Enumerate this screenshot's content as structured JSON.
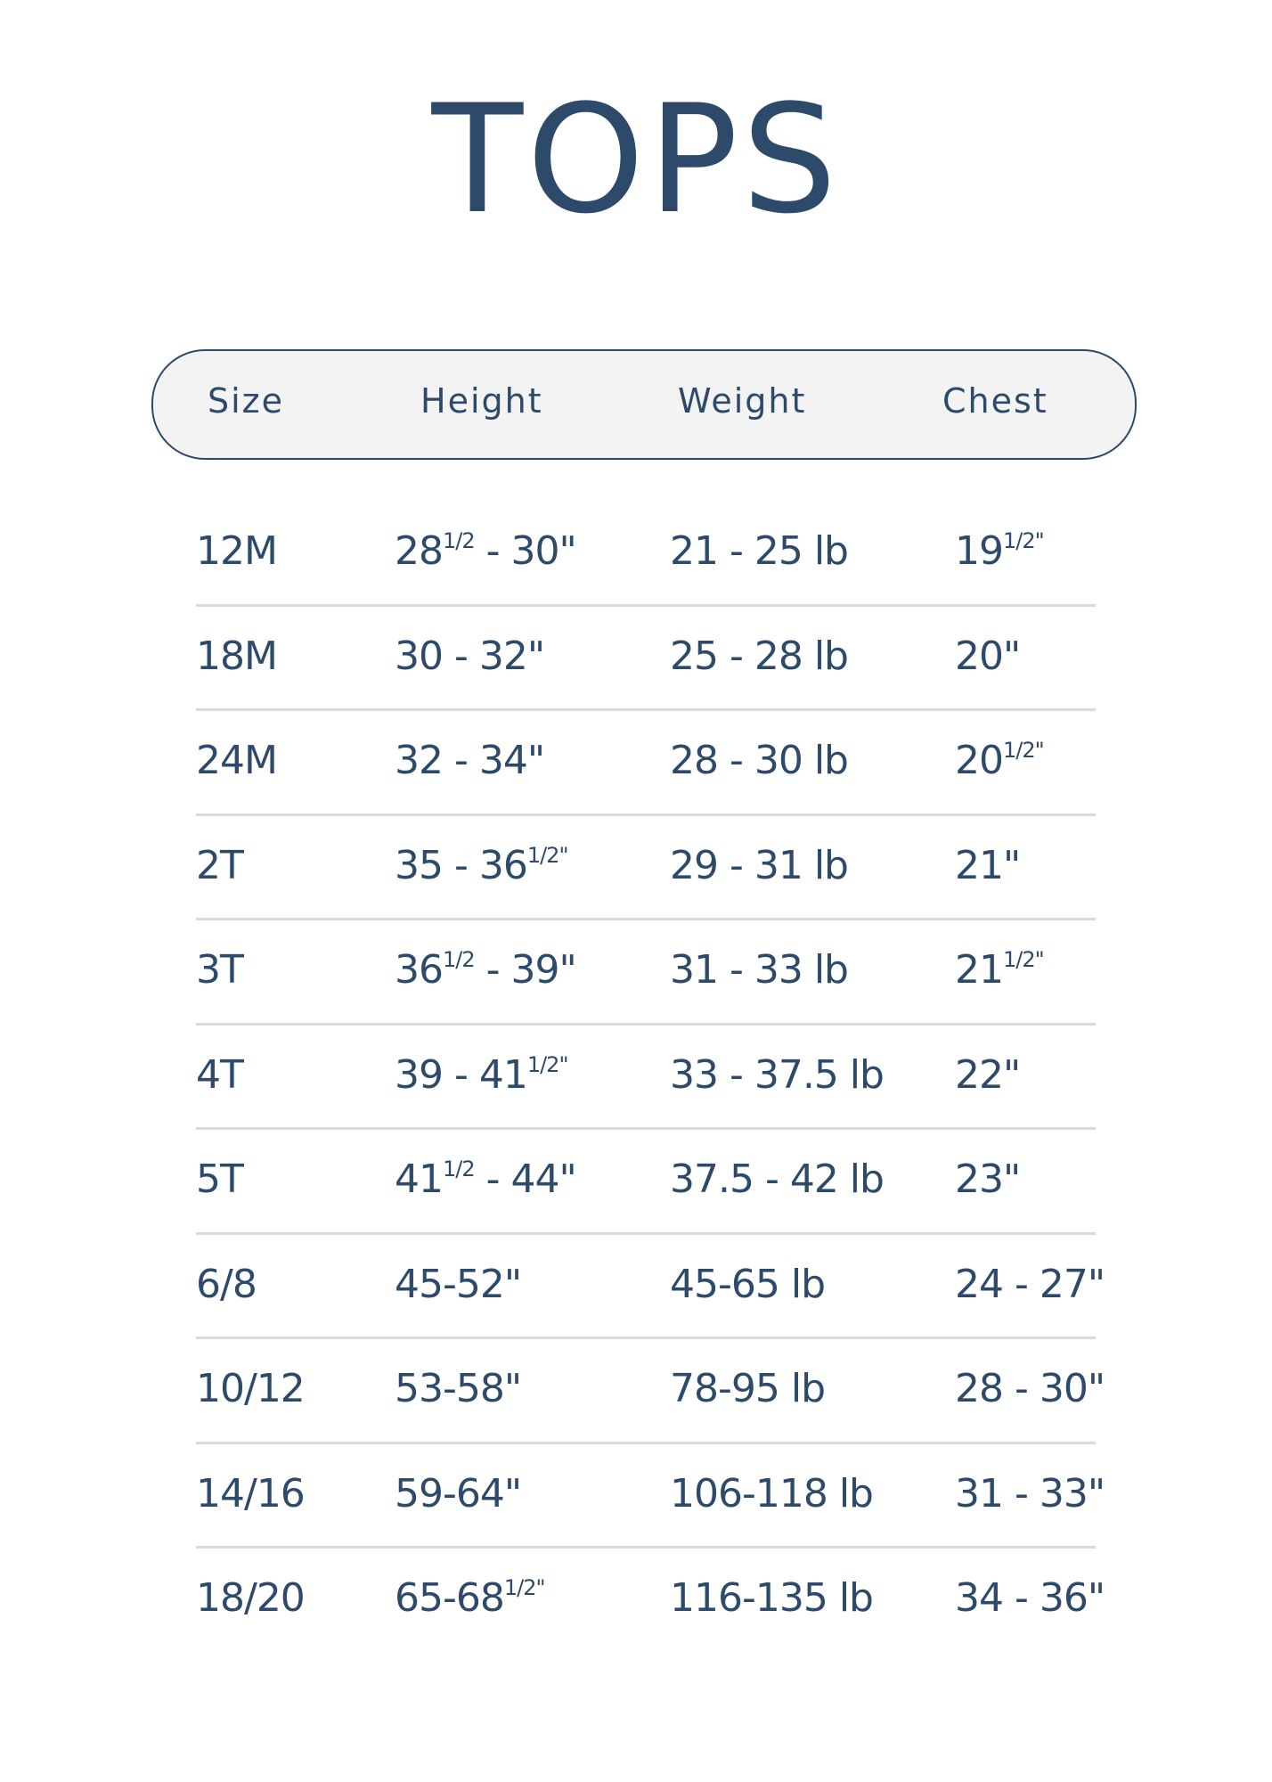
{
  "title": "TOPS",
  "colors": {
    "text": "#2d4a6b",
    "header_bg": "#f3f3f3",
    "divider": "#d7dbe1"
  },
  "headers": [
    "Size",
    "Height",
    "Weight",
    "Chest"
  ],
  "rows": [
    [
      {
        "t": "12M"
      },
      {
        "t": "28",
        "s": "1/2",
        "a": " - 30\""
      },
      {
        "t": "21 - 25 lb"
      },
      {
        "t": "19",
        "s": "1/2\""
      }
    ],
    [
      {
        "t": "18M"
      },
      {
        "t": "30 - 32\""
      },
      {
        "t": "25 - 28 lb"
      },
      {
        "t": "20\""
      }
    ],
    [
      {
        "t": "24M"
      },
      {
        "t": "32 - 34\""
      },
      {
        "t": "28 - 30 lb"
      },
      {
        "t": "20",
        "s": "1/2\""
      }
    ],
    [
      {
        "t": "2T"
      },
      {
        "t": "35 - 36",
        "s": "1/2\""
      },
      {
        "t": "29 - 31 lb"
      },
      {
        "t": "21\""
      }
    ],
    [
      {
        "t": "3T"
      },
      {
        "t": "36",
        "s": "1/2",
        "a": " - 39\""
      },
      {
        "t": "31 - 33 lb"
      },
      {
        "t": "21",
        "s": "1/2\""
      }
    ],
    [
      {
        "t": "4T"
      },
      {
        "t": "39 - 41",
        "s": "1/2\""
      },
      {
        "t": "33 - 37.5 lb"
      },
      {
        "t": "22\""
      }
    ],
    [
      {
        "t": "5T"
      },
      {
        "t": "41",
        "s": "1/2",
        "a": " - 44\""
      },
      {
        "t": "37.5 - 42 lb"
      },
      {
        "t": "23\""
      }
    ],
    [
      {
        "t": "6/8"
      },
      {
        "t": "45-52\""
      },
      {
        "t": "45-65 lb"
      },
      {
        "t": "24 - 27\""
      }
    ],
    [
      {
        "t": "10/12"
      },
      {
        "t": "53-58\""
      },
      {
        "t": "78-95 lb"
      },
      {
        "t": "28 - 30\""
      }
    ],
    [
      {
        "t": "14/16"
      },
      {
        "t": "59-64\""
      },
      {
        "t": "106-118 lb"
      },
      {
        "t": "31 - 33\""
      }
    ],
    [
      {
        "t": "18/20"
      },
      {
        "t": "65-68",
        "s": "1/2\""
      },
      {
        "t": "116-135 lb"
      },
      {
        "t": "34 - 36\""
      }
    ]
  ]
}
